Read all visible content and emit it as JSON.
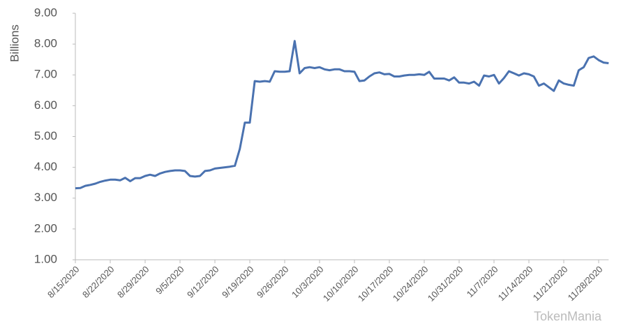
{
  "chart_data": {
    "type": "line",
    "ylabel": "Billions",
    "watermark": "TokenMania",
    "categories": [
      "8/15/2020",
      null,
      null,
      null,
      null,
      null,
      null,
      "8/22/2020",
      null,
      null,
      null,
      null,
      null,
      null,
      "8/29/2020",
      null,
      null,
      null,
      null,
      null,
      null,
      "9/5/2020",
      null,
      null,
      null,
      null,
      null,
      null,
      "9/12/2020",
      null,
      null,
      null,
      null,
      null,
      null,
      "9/19/2020",
      null,
      null,
      null,
      null,
      null,
      null,
      "9/26/2020",
      null,
      null,
      null,
      null,
      null,
      null,
      "10/3/2020",
      null,
      null,
      null,
      null,
      null,
      null,
      "10/10/2020",
      null,
      null,
      null,
      null,
      null,
      null,
      "10/17/2020",
      null,
      null,
      null,
      null,
      null,
      null,
      "10/24/2020",
      null,
      null,
      null,
      null,
      null,
      null,
      "10/31/2020",
      null,
      null,
      null,
      null,
      null,
      null,
      "11/7/2020",
      null,
      null,
      null,
      null,
      null,
      null,
      "11/14/2020",
      null,
      null,
      null,
      null,
      null,
      null,
      "11/21/2020",
      null,
      null,
      null,
      null,
      null,
      null,
      "11/28/2020",
      null,
      null
    ],
    "values": [
      3.32,
      3.33,
      3.4,
      3.43,
      3.47,
      3.53,
      3.57,
      3.6,
      3.6,
      3.58,
      3.66,
      3.55,
      3.65,
      3.65,
      3.72,
      3.76,
      3.72,
      3.8,
      3.85,
      3.88,
      3.9,
      3.9,
      3.88,
      3.72,
      3.7,
      3.72,
      3.88,
      3.9,
      3.96,
      3.98,
      4.0,
      4.02,
      4.05,
      4.6,
      5.45,
      5.45,
      6.8,
      6.78,
      6.8,
      6.78,
      7.12,
      7.1,
      7.1,
      7.12,
      8.1,
      7.05,
      7.22,
      7.25,
      7.22,
      7.25,
      7.18,
      7.15,
      7.18,
      7.18,
      7.12,
      7.12,
      7.1,
      6.8,
      6.82,
      6.95,
      7.05,
      7.08,
      7.02,
      7.03,
      6.95,
      6.95,
      6.98,
      7.0,
      7.0,
      7.02,
      7.0,
      7.1,
      6.88,
      6.88,
      6.88,
      6.82,
      6.92,
      6.75,
      6.75,
      6.72,
      6.78,
      6.65,
      6.98,
      6.95,
      7.0,
      6.72,
      6.9,
      7.12,
      7.05,
      6.98,
      7.05,
      7.02,
      6.95,
      6.65,
      6.72,
      6.6,
      6.48,
      6.82,
      6.72,
      6.68,
      6.65,
      7.15,
      7.25,
      7.55,
      7.6,
      7.48,
      7.4,
      7.38
    ],
    "color": "#4a72b0",
    "ylim": [
      1,
      9
    ],
    "yticks": [
      {
        "value": 1,
        "label": "1.00"
      },
      {
        "value": 2,
        "label": "2.00"
      },
      {
        "value": 3,
        "label": "3.00"
      },
      {
        "value": 4,
        "label": "4.00"
      },
      {
        "value": 5,
        "label": "5.00"
      },
      {
        "value": 6,
        "label": "6.00"
      },
      {
        "value": 7,
        "label": "7.00"
      },
      {
        "value": 8,
        "label": "8.00"
      },
      {
        "value": 9,
        "label": "9.00"
      }
    ],
    "grid": false
  }
}
